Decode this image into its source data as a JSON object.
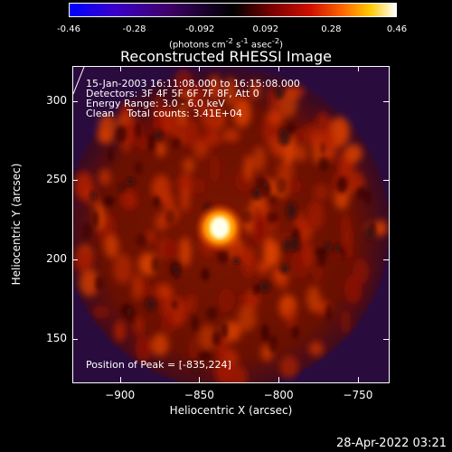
{
  "colorbar": {
    "ticks": [
      "-0.46",
      "-0.28",
      "-0.092",
      "0.092",
      "0.28",
      "0.46"
    ],
    "units_pre": "(photons cm",
    "units_exp1": "-2",
    "units_mid": " s",
    "units_exp2": "-1",
    "units_mid2": " asec",
    "units_exp3": "-2",
    "units_post": ")"
  },
  "plot": {
    "title": "Reconstructed RHESSI Image",
    "info_lines": [
      "15-Jan-2003 16:11:08.000 to 16:15:08.000",
      "Detectors: 3F 4F 5F 6F 7F 8F, Att 0",
      "Energy Range: 3.0 - 6.0 keV",
      "Clean    Total counts: 3.41E+04"
    ],
    "peak_text": "Position of Peak = [-835,224]",
    "xlabel": "Heliocentric X (arcsec)",
    "ylabel": "Heliocentric Y (arcsec)",
    "xticks": [
      "-900",
      "-850",
      "-800",
      "-750"
    ],
    "yticks": [
      "300",
      "250",
      "200",
      "150"
    ]
  },
  "chart_data": {
    "type": "heatmap",
    "title": "Reconstructed RHESSI Image",
    "xlabel": "Heliocentric X (arcsec)",
    "ylabel": "Heliocentric Y (arcsec)",
    "xlim": [
      -930,
      -730
    ],
    "ylim": [
      122,
      322
    ],
    "colorbar_range": [
      -0.46,
      0.46
    ],
    "peak": [
      -835,
      224
    ]
  },
  "timestamp": "28-Apr-2022 03:21"
}
